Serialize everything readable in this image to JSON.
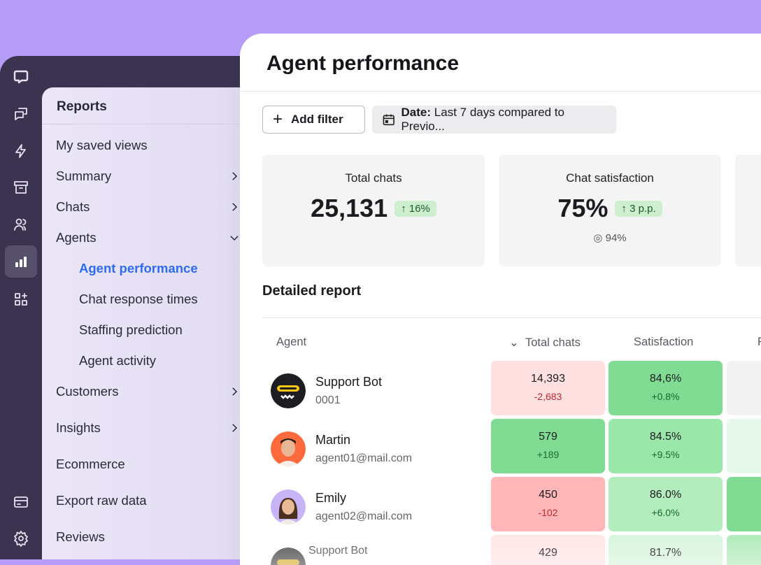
{
  "nav_rail": {
    "icons": [
      "chat-logo-icon",
      "chats-icon",
      "lightning-icon",
      "archive-icon",
      "customers-icon",
      "reports-icon",
      "apps-icon",
      "billing-icon",
      "settings-icon"
    ]
  },
  "menu": {
    "title": "Reports",
    "items": [
      {
        "label": "My saved views"
      },
      {
        "label": "Summary",
        "chevron": "right"
      },
      {
        "label": "Chats",
        "chevron": "right"
      },
      {
        "label": "Agents",
        "chevron": "down"
      },
      {
        "label": "Agent performance",
        "sub": true,
        "active": true
      },
      {
        "label": "Chat response times",
        "sub": true
      },
      {
        "label": "Staffing prediction",
        "sub": true
      },
      {
        "label": "Agent activity",
        "sub": true
      },
      {
        "label": "Customers",
        "chevron": "right"
      },
      {
        "label": "Insights",
        "chevron": "right"
      },
      {
        "label": "Ecommerce"
      },
      {
        "label": "Export raw data"
      },
      {
        "label": "Reviews"
      }
    ]
  },
  "page": {
    "title": "Agent performance",
    "add_filter": "Add filter",
    "date_label": "Date:",
    "date_value": "Last 7 days compared to Previo..."
  },
  "cards": [
    {
      "label": "Total chats",
      "value": "25,131",
      "change": "16%"
    },
    {
      "label": "Chat satisfaction",
      "value": "75%",
      "change": "3 p.p.",
      "target": "94%"
    }
  ],
  "report": {
    "title": "Detailed report",
    "columns": [
      "Agent",
      "Total chats",
      "Satisfaction",
      "F"
    ],
    "rows": [
      {
        "name": "Support Bot",
        "sub": "0001",
        "total": "14,393",
        "total_delta": "-2,683",
        "sat": "84,6%",
        "sat_delta": "+0.8%"
      },
      {
        "name": "Martin",
        "sub": "agent01@mail.com",
        "total": "579",
        "total_delta": "+189",
        "sat": "84.5%",
        "sat_delta": "+9.5%"
      },
      {
        "name": "Emily",
        "sub": "agent02@mail.com",
        "total": "450",
        "total_delta": "-102",
        "sat": "86.0%",
        "sat_delta": "+6.0%"
      },
      {
        "name": "Support Bot",
        "total": "429",
        "sat": "81.7%"
      }
    ]
  },
  "colors": {
    "accent": "#2d6cf0",
    "positive": "#7fdc92",
    "negative": "#ffb3b5",
    "background": "#b59cf7"
  }
}
